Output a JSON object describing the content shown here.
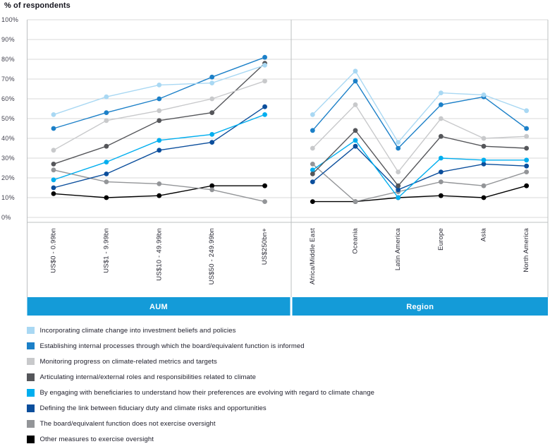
{
  "title": "% of respondents",
  "colors": {
    "band": "#149bd8",
    "band_text": "#ffffff",
    "grid": "#dadada",
    "border": "#bdc0c2",
    "tick_text": "#3f3f4c",
    "category_text": "#2a2a35",
    "title_text": "#15151e",
    "legend_text": "#1b1b28"
  },
  "chart_data": {
    "type": "line",
    "title": "% of respondents",
    "ylabel": "% of respondents",
    "ylim": [
      0,
      100
    ],
    "y_ticks": [
      0,
      10,
      20,
      30,
      40,
      50,
      60,
      70,
      80,
      90,
      100
    ],
    "y_tick_suffix": "%",
    "grid": true,
    "legend_position": "bottom-left",
    "panels": [
      {
        "label": "AUM",
        "categories": [
          "US$0 - 0.99bn",
          "US$1 - 9.99bn",
          "US$10 - 49.99bn",
          "US$50 - 249.99bn",
          "US$250bn+"
        ]
      },
      {
        "label": "Region",
        "categories": [
          "Africa/Middle East",
          "Oceania",
          "Latin America",
          "Europe",
          "Asia",
          "North America"
        ]
      }
    ],
    "series": [
      {
        "name": "Incorporating climate change into investment beliefs and policies",
        "color": "#a9d8f3",
        "values": [
          [
            52,
            61,
            67,
            68,
            77
          ],
          [
            52,
            74,
            38,
            63,
            62,
            54
          ]
        ]
      },
      {
        "name": "Establishing internal processes through which the board/equivalent function is informed",
        "color": "#1c80c8",
        "values": [
          [
            45,
            53,
            60,
            71,
            81
          ],
          [
            44,
            69,
            35,
            57,
            61,
            45
          ]
        ]
      },
      {
        "name": "Monitoring progress on climate-related metrics and targets",
        "color": "#c8c9cb",
        "values": [
          [
            34,
            49,
            54,
            60,
            69
          ],
          [
            35,
            57,
            23,
            50,
            40,
            41
          ]
        ]
      },
      {
        "name": "Articulating internal/external roles and responsibilities related to climate",
        "color": "#55565a",
        "values": [
          [
            27,
            36,
            49,
            53,
            78
          ],
          [
            22,
            44,
            16,
            41,
            36,
            35
          ]
        ]
      },
      {
        "name": "By engaging with beneficiaries to understand how their preferences are evolving with regard to climate change",
        "color": "#00aeef",
        "values": [
          [
            19,
            28,
            39,
            42,
            52
          ],
          [
            24,
            39,
            10,
            30,
            29,
            29
          ]
        ]
      },
      {
        "name": "Defining the link between fiduciary duty and climate risks and opportunities",
        "color": "#0b4e9c",
        "values": [
          [
            15,
            22,
            34,
            38,
            56
          ],
          [
            18,
            36,
            14,
            23,
            27,
            26
          ]
        ]
      },
      {
        "name": "The board/equivalent function does not exercise oversight",
        "color": "#939598",
        "values": [
          [
            24,
            18,
            17,
            14,
            8
          ],
          [
            27,
            8,
            13,
            18,
            16,
            23
          ]
        ]
      },
      {
        "name": "Other measures to exercise oversight",
        "color": "#000000",
        "values": [
          [
            12,
            10,
            11,
            16,
            16
          ],
          [
            8,
            8,
            10,
            11,
            10,
            16
          ]
        ]
      }
    ]
  }
}
